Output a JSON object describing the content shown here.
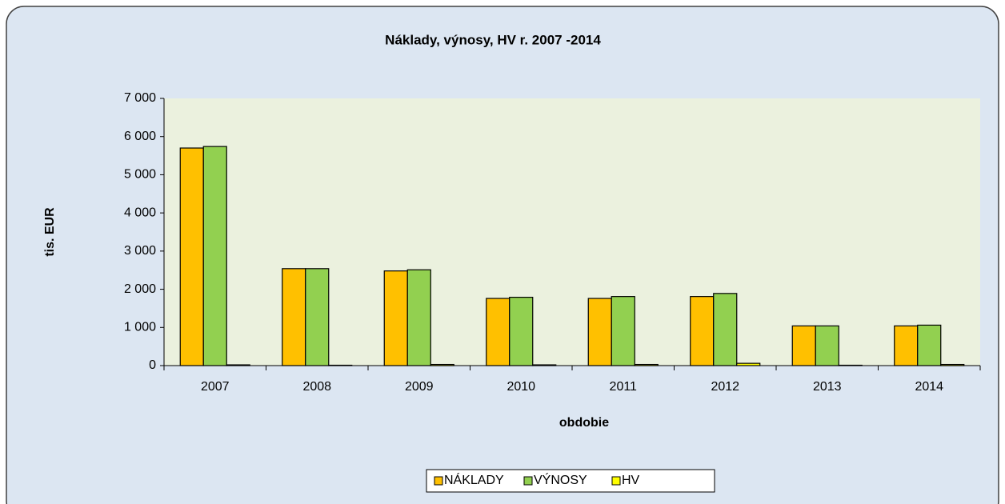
{
  "chart_data": {
    "type": "bar",
    "title": "Náklady, výnosy, HV r. 2007 -2014",
    "y_label": "tis. EUR",
    "x_label": "obdobie",
    "categories": [
      "2007",
      "2008",
      "2009",
      "2010",
      "2011",
      "2012",
      "2013",
      "2014"
    ],
    "series": [
      {
        "name": "NÁKLADY",
        "color": "#ffc000",
        "values": [
          5700,
          2540,
          2480,
          1760,
          1760,
          1810,
          1040,
          1040
        ]
      },
      {
        "name": "VÝNOSY",
        "color": "#92d050",
        "values": [
          5740,
          2540,
          2510,
          1790,
          1810,
          1890,
          1040,
          1060
        ]
      },
      {
        "name": "HV",
        "color": "#ffff00",
        "values": [
          20,
          10,
          30,
          20,
          30,
          60,
          10,
          30
        ]
      }
    ],
    "ylim": [
      0,
      7000
    ],
    "yticks": [
      0,
      {
        "value": 1000,
        "label": "1 000"
      },
      {
        "value": 2000,
        "label": "2 000"
      },
      {
        "value": 3000,
        "label": "3 000"
      },
      {
        "value": 4000,
        "label": "4 000"
      },
      {
        "value": 5000,
        "label": "5 000"
      },
      {
        "value": 6000,
        "label": "6 000"
      },
      {
        "value": 7000,
        "label": "7 000"
      }
    ],
    "legend": "bottom"
  }
}
